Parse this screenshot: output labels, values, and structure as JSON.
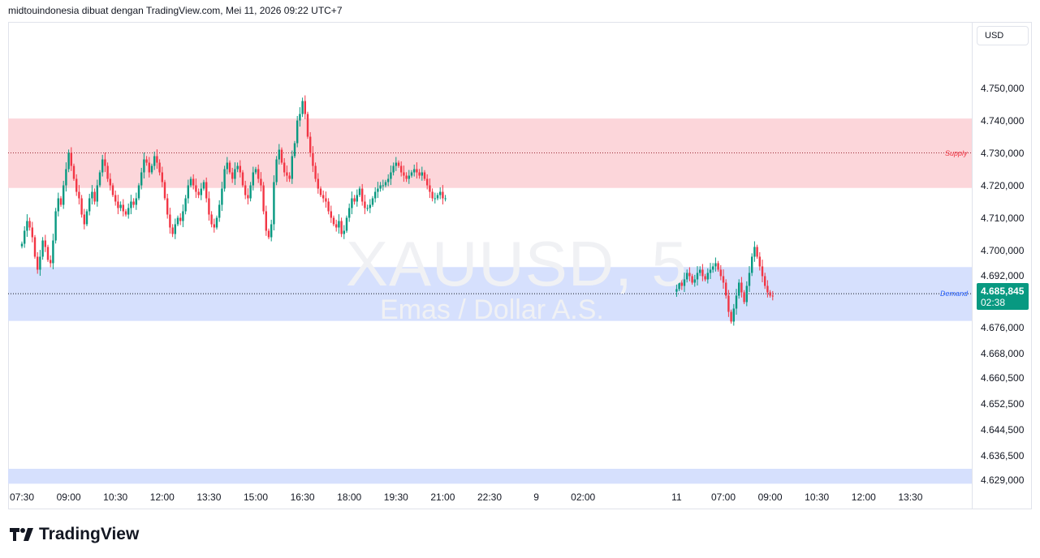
{
  "header": {
    "title": "midtouindonesia dibuat dengan TradingView.com, Mei 11, 2026 09:22 UTC+7"
  },
  "watermark": {
    "symbol": "XAUUSD, 5",
    "description": "Emas / Dollar A.S."
  },
  "currency": "USD",
  "brand": {
    "name": "TradingView",
    "icon": "tradingview-logo-icon"
  },
  "colors": {
    "up": "#089981",
    "down": "#f23645",
    "supply": "#fcd6da",
    "demand": "#d6e0fd",
    "supply_text": "#f23645",
    "demand_text": "#2962ff"
  },
  "last_price": {
    "value": "4.685,845",
    "countdown": "02:38"
  },
  "zones": {
    "supply": {
      "label": "Supply",
      "from": 4719.2,
      "to": 4740.6,
      "line": 4730.0
    },
    "demand": {
      "label": "Demand",
      "from": 4678.2,
      "to": 4694.8,
      "line": 4686.6
    },
    "lower": {
      "from": 4628.0,
      "to": 4632.6
    }
  },
  "chart_data": {
    "type": "candlestick",
    "title": "XAUUSD, 5",
    "subtitle": "Emas / Dollar A.S.",
    "ylim": [
      4627.6,
      4770.4
    ],
    "y_ticks": [
      "4.750,000",
      "4.740,000",
      "4.730,000",
      "4.720,000",
      "4.710,000",
      "4.700,000",
      "4.692,000",
      "4.676,000",
      "4.668,000",
      "4.660,500",
      "4.652,500",
      "4.644,500",
      "4.636,500",
      "4.629,000"
    ],
    "y_tick_values": [
      4750.0,
      4740.0,
      4730.0,
      4720.0,
      4710.0,
      4700.0,
      4692.0,
      4676.0,
      4668.0,
      4660.5,
      4652.5,
      4644.5,
      4636.5,
      4629.0
    ],
    "x_ticks": [
      "07:30",
      "09:00",
      "10:30",
      "12:00",
      "13:30",
      "15:00",
      "16:30",
      "18:00",
      "19:30",
      "21:00",
      "22:30",
      "9",
      "02:00",
      "11",
      "07:00",
      "09:00",
      "10:30",
      "12:00",
      "13:30"
    ],
    "x_tick_bars": [
      0,
      18,
      36,
      54,
      72,
      90,
      108,
      126,
      144,
      162,
      180,
      198,
      216,
      252,
      270,
      288,
      306,
      324,
      342
    ],
    "segments": [
      {
        "start": 0,
        "note": "session 1",
        "closes": [
          4702,
          4706,
          4709,
          4707,
          4704,
          4698,
          4694,
          4698,
          4703,
          4701,
          4697,
          4696,
          4703,
          4712,
          4716,
          4714,
          4720,
          4725,
          4730,
          4726,
          4722,
          4718,
          4716,
          4711,
          4708,
          4712,
          4716,
          4718,
          4715,
          4720,
          4724,
          4728,
          4726,
          4722,
          4720,
          4717,
          4715,
          4713,
          4714,
          4712,
          4711,
          4713,
          4715,
          4714,
          4716,
          4720,
          4724,
          4728,
          4727,
          4724,
          4726,
          4729,
          4727,
          4724,
          4721,
          4716,
          4711,
          4707,
          4705,
          4708,
          4710,
          4709,
          4712,
          4716,
          4720,
          4722,
          4720,
          4718,
          4717,
          4719,
          4721,
          4716,
          4711,
          4708,
          4707,
          4710,
          4714,
          4719,
          4725,
          4727,
          4724,
          4722,
          4725,
          4726,
          4724,
          4720,
          4717,
          4716,
          4720,
          4724,
          4725,
          4722,
          4720,
          4712,
          4706,
          4704,
          4708,
          4721,
          4728,
          4731,
          4727,
          4724,
          4723,
          4722,
          4729,
          4733,
          4740,
          4742,
          4746,
          4742,
          4735,
          4730,
          4726,
          4722,
          4719,
          4717,
          4716,
          4715,
          4712,
          4710,
          4708,
          4707,
          4709,
          4705,
          4706,
          4710,
          4713,
          4716,
          4715,
          4717,
          4719,
          4715,
          4713,
          4713,
          4714,
          4716,
          4718,
          4719,
          4720,
          4720,
          4721,
          4722,
          4724,
          4726,
          4727,
          4726,
          4724,
          4723,
          4722,
          4723,
          4724,
          4725,
          4724,
          4723,
          4724,
          4722,
          4720,
          4718,
          4716,
          4716,
          4717,
          4718,
          4716,
          4716
        ]
      },
      {
        "start": 252,
        "note": "session 2",
        "closes": [
          4688,
          4690,
          4689,
          4691,
          4693,
          4692,
          4690,
          4691,
          4693,
          4694,
          4692,
          4691,
          4693,
          4694,
          4695,
          4696,
          4694,
          4692,
          4690,
          4686,
          4681,
          4678,
          4682,
          4686,
          4690,
          4687,
          4684,
          4689,
          4693,
          4698,
          4701,
          4698,
          4695,
          4692,
          4689,
          4687,
          4686,
          4685.8
        ]
      }
    ]
  }
}
